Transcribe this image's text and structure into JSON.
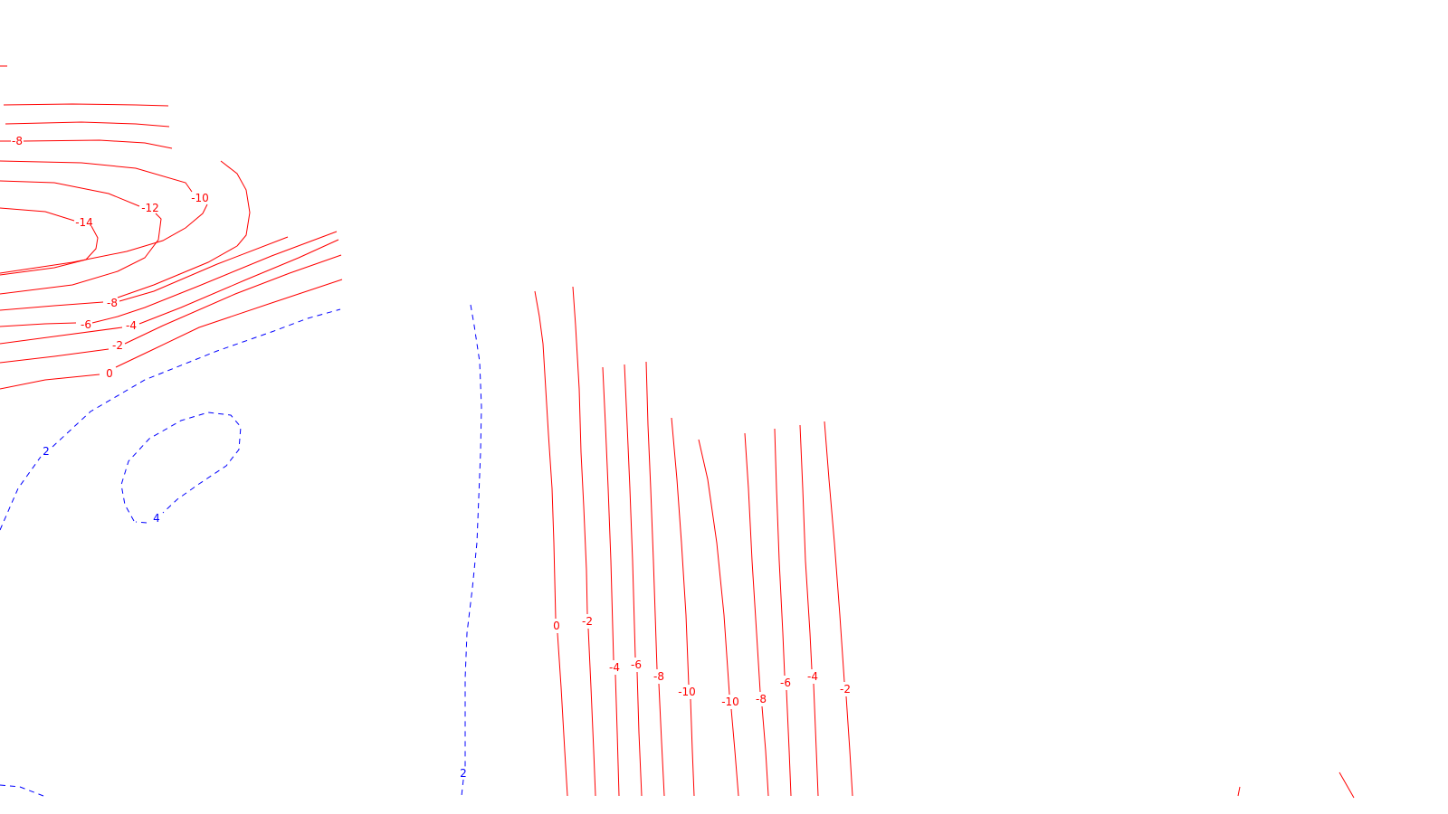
{
  "chart_data": {
    "type": "contour",
    "title": "",
    "xlabel": "",
    "ylabel": "",
    "grid": false,
    "colors": {
      "negative": "#ff0000",
      "positive": "#0000ff"
    },
    "line_styles": {
      "negative": "solid",
      "positive": "dashed"
    },
    "contour_levels_shown": [
      -14,
      -12,
      -10,
      -8,
      -6,
      -4,
      -2,
      0,
      2,
      4
    ],
    "contour_labels": [
      "-8",
      "-10",
      "-12",
      "-14",
      "-8",
      "-6",
      "-4",
      "-2",
      "0",
      "2",
      "4",
      "2",
      "0",
      "-2",
      "-4",
      "-6",
      "-8",
      "-10",
      "-10",
      "-8",
      "-6",
      "-4",
      "-2"
    ]
  }
}
